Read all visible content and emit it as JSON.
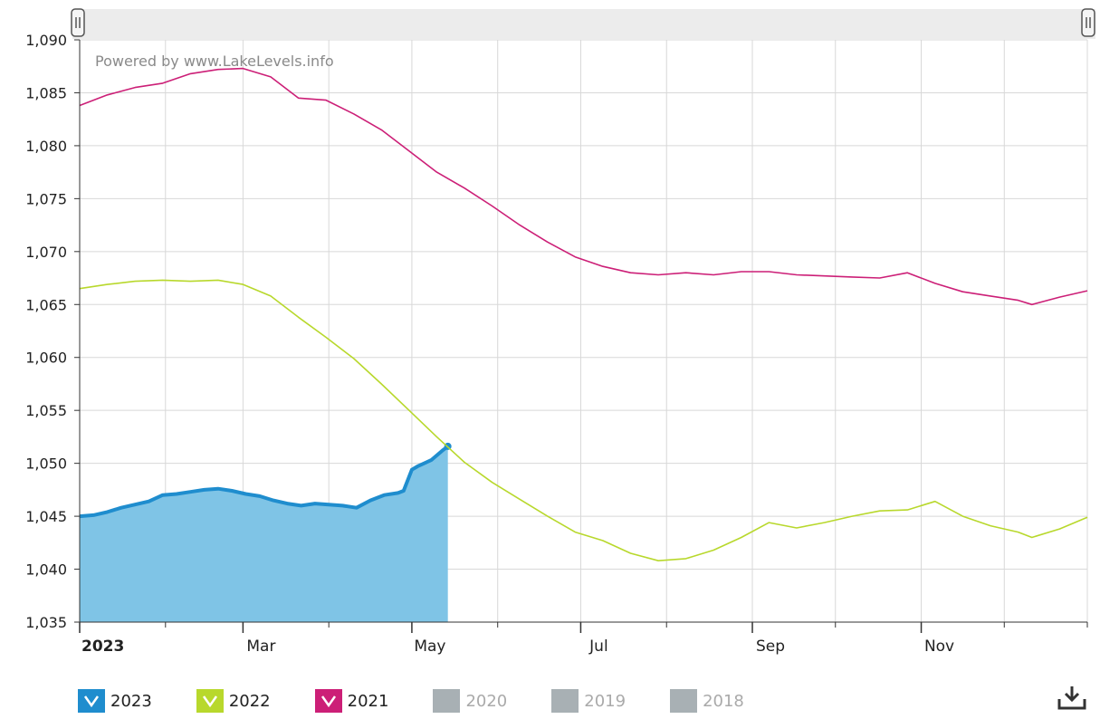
{
  "watermark": "Powered by www.LakeLevels.info",
  "colors": {
    "y2023": "#1f8dce",
    "y2023_fill": "#7fc4e6",
    "y2022": "#b8d82c",
    "y2021": "#cc1f77",
    "disabled": "#a8b0b4",
    "grid": "#d8d8d8",
    "navigator": "#ececec"
  },
  "chart_data": {
    "type": "line",
    "title": "",
    "xlabel": "",
    "ylabel": "",
    "ylim": [
      1035,
      1090
    ],
    "yticks": [
      "1,035",
      "1,040",
      "1,045",
      "1,050",
      "1,055",
      "1,060",
      "1,065",
      "1,070",
      "1,075",
      "1,080",
      "1,085",
      "1,090"
    ],
    "xlim": [
      "2023-01-01",
      "2023-12-31"
    ],
    "xticks": [
      {
        "date": "2023-01-01",
        "label": "2023",
        "bold": true
      },
      {
        "date": "2023-03-01",
        "label": "Mar"
      },
      {
        "date": "2023-05-01",
        "label": "May"
      },
      {
        "date": "2023-07-01",
        "label": "Jul"
      },
      {
        "date": "2023-09-01",
        "label": "Sep"
      },
      {
        "date": "2023-11-01",
        "label": "Nov"
      }
    ],
    "grid": true,
    "legend_position": "bottom",
    "series": [
      {
        "name": "2023",
        "color": "#1f8dce",
        "area": true,
        "visible": true,
        "points": [
          [
            "2023-01-01",
            1045.0
          ],
          [
            "2023-01-06",
            1045.1
          ],
          [
            "2023-01-11",
            1045.4
          ],
          [
            "2023-01-16",
            1045.8
          ],
          [
            "2023-01-21",
            1046.1
          ],
          [
            "2023-01-26",
            1046.4
          ],
          [
            "2023-01-31",
            1047.0
          ],
          [
            "2023-02-05",
            1047.1
          ],
          [
            "2023-02-10",
            1047.3
          ],
          [
            "2023-02-15",
            1047.5
          ],
          [
            "2023-02-20",
            1047.6
          ],
          [
            "2023-02-25",
            1047.4
          ],
          [
            "2023-03-02",
            1047.1
          ],
          [
            "2023-03-07",
            1046.9
          ],
          [
            "2023-03-12",
            1046.5
          ],
          [
            "2023-03-17",
            1046.2
          ],
          [
            "2023-03-22",
            1046.0
          ],
          [
            "2023-03-27",
            1046.2
          ],
          [
            "2023-04-01",
            1046.1
          ],
          [
            "2023-04-06",
            1046.0
          ],
          [
            "2023-04-11",
            1045.8
          ],
          [
            "2023-04-16",
            1046.5
          ],
          [
            "2023-04-21",
            1047.0
          ],
          [
            "2023-04-26",
            1047.2
          ],
          [
            "2023-04-28",
            1047.4
          ],
          [
            "2023-05-01",
            1049.4
          ],
          [
            "2023-05-03",
            1049.7
          ],
          [
            "2023-05-08",
            1050.3
          ],
          [
            "2023-05-12",
            1051.2
          ],
          [
            "2023-05-14",
            1051.6
          ]
        ]
      },
      {
        "name": "2022",
        "color": "#b8d82c",
        "area": false,
        "visible": true,
        "points": [
          [
            "2023-01-01",
            1066.5
          ],
          [
            "2023-01-11",
            1066.9
          ],
          [
            "2023-01-21",
            1067.2
          ],
          [
            "2023-01-31",
            1067.3
          ],
          [
            "2023-02-10",
            1067.2
          ],
          [
            "2023-02-20",
            1067.3
          ],
          [
            "2023-03-01",
            1066.9
          ],
          [
            "2023-03-11",
            1065.8
          ],
          [
            "2023-03-21",
            1063.8
          ],
          [
            "2023-03-31",
            1061.9
          ],
          [
            "2023-04-10",
            1059.9
          ],
          [
            "2023-04-20",
            1057.5
          ],
          [
            "2023-04-30",
            1055.0
          ],
          [
            "2023-05-10",
            1052.5
          ],
          [
            "2023-05-20",
            1050.1
          ],
          [
            "2023-05-30",
            1048.2
          ],
          [
            "2023-06-09",
            1046.6
          ],
          [
            "2023-06-19",
            1045.0
          ],
          [
            "2023-06-29",
            1043.5
          ],
          [
            "2023-07-09",
            1042.7
          ],
          [
            "2023-07-19",
            1041.5
          ],
          [
            "2023-07-29",
            1040.8
          ],
          [
            "2023-08-08",
            1041.0
          ],
          [
            "2023-08-18",
            1041.8
          ],
          [
            "2023-08-28",
            1043.0
          ],
          [
            "2023-09-07",
            1044.4
          ],
          [
            "2023-09-17",
            1043.9
          ],
          [
            "2023-09-27",
            1044.4
          ],
          [
            "2023-10-07",
            1045.0
          ],
          [
            "2023-10-17",
            1045.5
          ],
          [
            "2023-10-27",
            1045.6
          ],
          [
            "2023-11-06",
            1046.4
          ],
          [
            "2023-11-16",
            1045.0
          ],
          [
            "2023-11-26",
            1044.1
          ],
          [
            "2023-12-06",
            1043.5
          ],
          [
            "2023-12-11",
            1043.0
          ],
          [
            "2023-12-21",
            1043.8
          ],
          [
            "2023-12-31",
            1044.9
          ]
        ]
      },
      {
        "name": "2021",
        "color": "#cc1f77",
        "area": false,
        "visible": true,
        "points": [
          [
            "2023-01-01",
            1083.8
          ],
          [
            "2023-01-11",
            1084.8
          ],
          [
            "2023-01-21",
            1085.5
          ],
          [
            "2023-01-31",
            1085.9
          ],
          [
            "2023-02-10",
            1086.8
          ],
          [
            "2023-02-20",
            1087.2
          ],
          [
            "2023-03-01",
            1087.3
          ],
          [
            "2023-03-11",
            1086.5
          ],
          [
            "2023-03-21",
            1084.5
          ],
          [
            "2023-03-31",
            1084.3
          ],
          [
            "2023-04-10",
            1083.0
          ],
          [
            "2023-04-20",
            1081.5
          ],
          [
            "2023-04-30",
            1079.5
          ],
          [
            "2023-05-10",
            1077.5
          ],
          [
            "2023-05-20",
            1076.0
          ],
          [
            "2023-05-30",
            1074.3
          ],
          [
            "2023-06-09",
            1072.5
          ],
          [
            "2023-06-19",
            1070.9
          ],
          [
            "2023-06-29",
            1069.5
          ],
          [
            "2023-07-09",
            1068.6
          ],
          [
            "2023-07-19",
            1068.0
          ],
          [
            "2023-07-29",
            1067.8
          ],
          [
            "2023-08-08",
            1068.0
          ],
          [
            "2023-08-18",
            1067.8
          ],
          [
            "2023-08-28",
            1068.1
          ],
          [
            "2023-09-07",
            1068.1
          ],
          [
            "2023-09-17",
            1067.8
          ],
          [
            "2023-09-27",
            1067.7
          ],
          [
            "2023-10-07",
            1067.6
          ],
          [
            "2023-10-17",
            1067.5
          ],
          [
            "2023-10-27",
            1068.0
          ],
          [
            "2023-11-06",
            1067.0
          ],
          [
            "2023-11-16",
            1066.2
          ],
          [
            "2023-11-26",
            1065.8
          ],
          [
            "2023-12-06",
            1065.4
          ],
          [
            "2023-12-11",
            1065.0
          ],
          [
            "2023-12-21",
            1065.7
          ],
          [
            "2023-12-31",
            1066.3
          ]
        ]
      },
      {
        "name": "2020",
        "visible": false,
        "points": []
      },
      {
        "name": "2019",
        "visible": false,
        "points": []
      },
      {
        "name": "2018",
        "visible": false,
        "points": []
      }
    ]
  },
  "legend": [
    {
      "label": "2023",
      "active": true,
      "color": "#1f8dce"
    },
    {
      "label": "2022",
      "active": true,
      "color": "#b8d82c"
    },
    {
      "label": "2021",
      "active": true,
      "color": "#cc1f77"
    },
    {
      "label": "2020",
      "active": false,
      "color": "#a8b0b4"
    },
    {
      "label": "2019",
      "active": false,
      "color": "#a8b0b4"
    },
    {
      "label": "2018",
      "active": false,
      "color": "#a8b0b4"
    }
  ],
  "export_icon": "download-icon"
}
